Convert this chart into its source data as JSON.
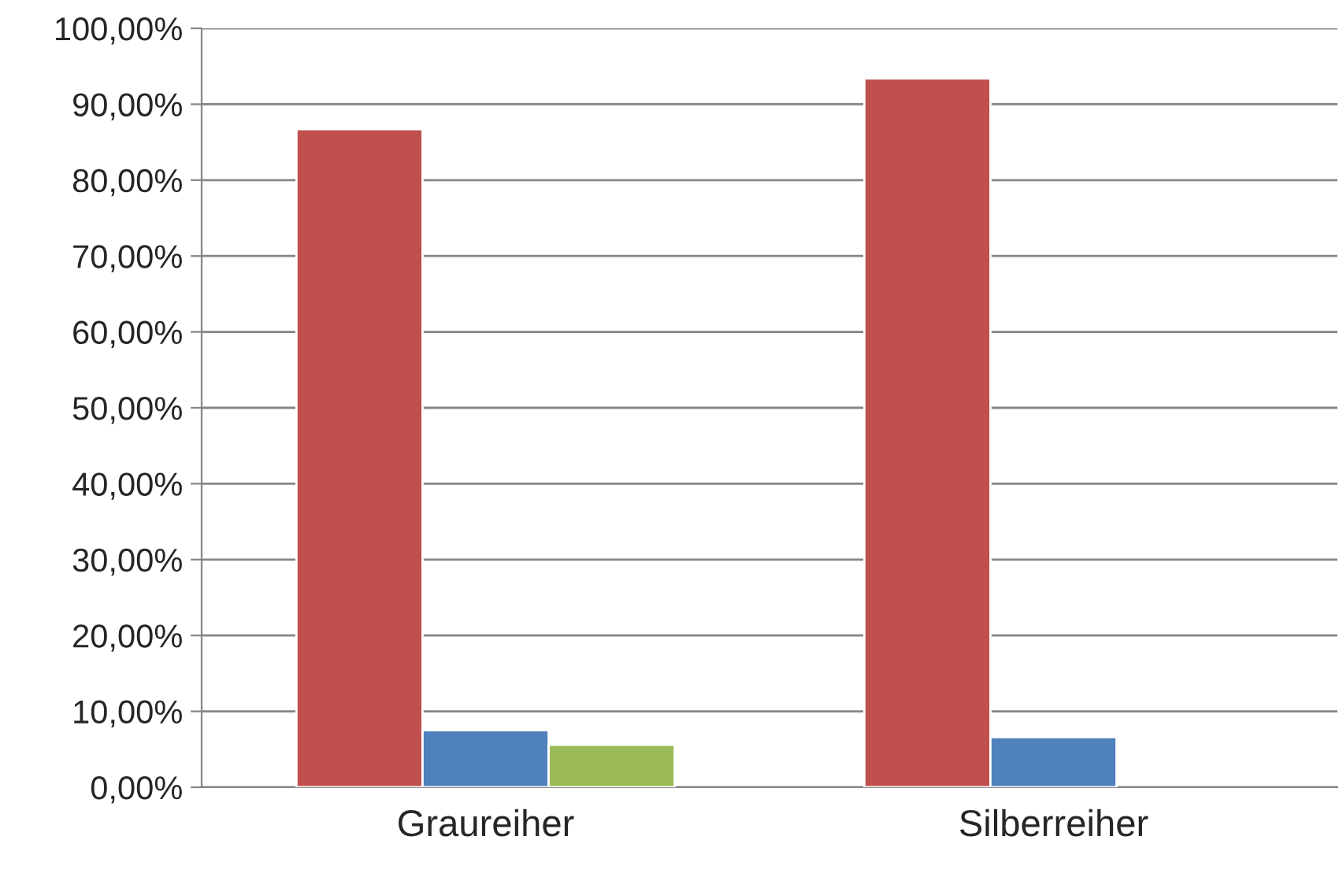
{
  "chart_data": {
    "type": "bar",
    "categories": [
      "Graureiher",
      "Silberreiher"
    ],
    "series": [
      {
        "color": "#c0504d",
        "values": [
          86.7,
          93.4
        ]
      },
      {
        "color": "#4f81bd",
        "values": [
          7.5,
          6.6
        ]
      },
      {
        "color": "#9bbb59",
        "values": [
          5.6,
          null
        ]
      }
    ],
    "ylim": [
      0,
      100
    ],
    "yticks": [
      {
        "value": 0,
        "label": "0,00%"
      },
      {
        "value": 10,
        "label": "10,00%"
      },
      {
        "value": 20,
        "label": "20,00%"
      },
      {
        "value": 30,
        "label": "30,00%"
      },
      {
        "value": 40,
        "label": "40,00%"
      },
      {
        "value": 50,
        "label": "50,00%"
      },
      {
        "value": 60,
        "label": "60,00%"
      },
      {
        "value": 70,
        "label": "70,00%"
      },
      {
        "value": 80,
        "label": "80,00%"
      },
      {
        "value": 90,
        "label": "90,00%"
      },
      {
        "value": 100,
        "label": "100,00%"
      }
    ],
    "grid": "y",
    "legend": false
  }
}
